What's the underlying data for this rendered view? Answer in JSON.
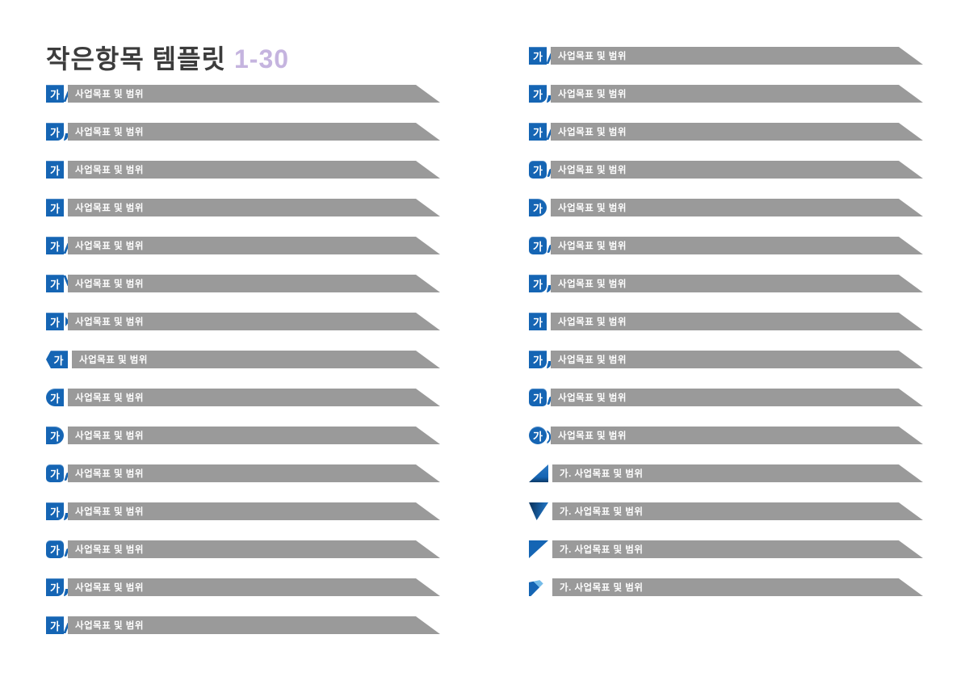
{
  "title": {
    "text": "작은항목 템플릿",
    "range": "1-30"
  },
  "colors": {
    "badge_blue": "#1565b4",
    "bar_gray": "#9a9a9a",
    "range_lavender": "#c5b4df",
    "title_gray": "#3c3c3c",
    "triangle_navy": "#0c3a68",
    "triangle_sky": "#74bbe8",
    "text_white": "#ffffff"
  },
  "badge_char": "가",
  "bar_label": "사업목표 및 범위",
  "numbered_bar_label": "가. 사업목표 및 범위",
  "columns": {
    "left": [
      {
        "type": "badge",
        "badge": "가",
        "label": "사업목표 및 범위",
        "variant": "v-slant"
      },
      {
        "type": "badge",
        "badge": "가",
        "label": "사업목표 및 범위",
        "variant": "v-round-br"
      },
      {
        "type": "badge",
        "badge": "가",
        "label": "사업목표 및 범위",
        "variant": "v-square"
      },
      {
        "type": "badge",
        "badge": "가",
        "label": "사업목표 및 범위",
        "variant": "v-square"
      },
      {
        "type": "badge",
        "badge": "가",
        "label": "사업목표 및 범위",
        "variant": "v-slant"
      },
      {
        "type": "badge",
        "badge": "가",
        "label": "사업목표 및 범위",
        "variant": "v-slant-up"
      },
      {
        "type": "badge",
        "badge": "가",
        "label": "사업목표 및 범위",
        "variant": "v-chevron"
      },
      {
        "type": "badge",
        "badge": "가",
        "label": "사업목표 및 범위",
        "variant": "v-notch-left"
      },
      {
        "type": "badge",
        "badge": "가",
        "label": "사업목표 및 범위",
        "variant": "v-round-left"
      },
      {
        "type": "badge",
        "badge": "가",
        "label": "사업목표 및 범위",
        "variant": "v-round-right"
      },
      {
        "type": "badge",
        "badge": "가",
        "label": "사업목표 및 범위",
        "variant": "v-round-all"
      },
      {
        "type": "badge",
        "badge": "가",
        "label": "사업목표 및 범위",
        "variant": "v-round-br"
      },
      {
        "type": "badge",
        "badge": "가",
        "label": "사업목표 및 범위",
        "variant": "v-round-all"
      },
      {
        "type": "badge",
        "badge": "가",
        "label": "사업목표 및 범위",
        "variant": "v-round-br"
      },
      {
        "type": "badge",
        "badge": "가",
        "label": "사업목표 및 범위",
        "variant": "v-slant"
      }
    ],
    "right": [
      {
        "type": "badge",
        "badge": "가",
        "label": "사업목표 및 범위",
        "variant": "v-slant"
      },
      {
        "type": "badge",
        "badge": "가",
        "label": "사업목표 및 범위",
        "variant": "v-round-br"
      },
      {
        "type": "badge",
        "badge": "가",
        "label": "사업목표 및 범위",
        "variant": "v-slant"
      },
      {
        "type": "badge",
        "badge": "가",
        "label": "사업목표 및 범위",
        "variant": "v-round-all"
      },
      {
        "type": "badge",
        "badge": "가",
        "label": "사업목표 및 범위",
        "variant": "v-round-right"
      },
      {
        "type": "badge",
        "badge": "가",
        "label": "사업목표 및 범위",
        "variant": "v-round-all"
      },
      {
        "type": "badge",
        "badge": "가",
        "label": "사업목표 및 범위",
        "variant": "v-round-br"
      },
      {
        "type": "badge",
        "badge": "가",
        "label": "사업목표 및 범위",
        "variant": "v-square"
      },
      {
        "type": "badge",
        "badge": "가",
        "label": "사업목표 및 범위",
        "variant": "v-round-br"
      },
      {
        "type": "badge",
        "badge": "가",
        "label": "사업목표 및 범위",
        "variant": "v-round-all"
      },
      {
        "type": "badge",
        "badge": "가",
        "label": "사업목표 및 범위",
        "variant": "v-circle"
      },
      {
        "type": "triangle",
        "label": "가. 사업목표 및 범위",
        "variant": "tri-1"
      },
      {
        "type": "triangle",
        "label": "가. 사업목표 및 범위",
        "variant": "tri-2"
      },
      {
        "type": "triangle",
        "label": "가. 사업목표 및 범위",
        "variant": "tri-3"
      },
      {
        "type": "triangle",
        "label": "가. 사업목표 및 범위",
        "variant": "tri-4"
      }
    ]
  }
}
